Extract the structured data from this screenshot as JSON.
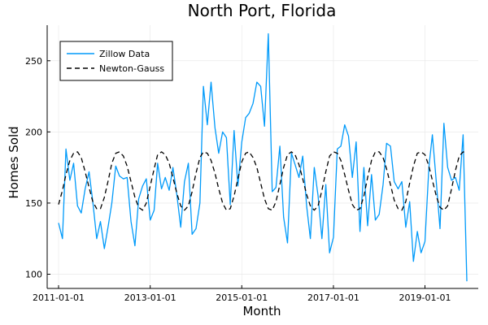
{
  "chart_data": {
    "type": "line",
    "title": "North Port, Florida",
    "xlabel": "Month",
    "ylabel": "Homes Sold",
    "xlim": [
      "2011-01-01",
      "2019-12-01"
    ],
    "ylim": [
      90,
      275
    ],
    "x_ticks": [
      "2011-01-01",
      "2013-01-01",
      "2015-01-01",
      "2017-01-01",
      "2019-01-01"
    ],
    "y_ticks": [
      100,
      150,
      200,
      250
    ],
    "grid": true,
    "legend_position": "top-left",
    "x": [
      "2011-01-01",
      "2011-02-01",
      "2011-03-01",
      "2011-04-01",
      "2011-05-01",
      "2011-06-01",
      "2011-07-01",
      "2011-08-01",
      "2011-09-01",
      "2011-10-01",
      "2011-11-01",
      "2011-12-01",
      "2012-01-01",
      "2012-02-01",
      "2012-03-01",
      "2012-04-01",
      "2012-05-01",
      "2012-06-01",
      "2012-07-01",
      "2012-08-01",
      "2012-09-01",
      "2012-10-01",
      "2012-11-01",
      "2012-12-01",
      "2013-01-01",
      "2013-02-01",
      "2013-03-01",
      "2013-04-01",
      "2013-05-01",
      "2013-06-01",
      "2013-07-01",
      "2013-08-01",
      "2013-09-01",
      "2013-10-01",
      "2013-11-01",
      "2013-12-01",
      "2014-01-01",
      "2014-02-01",
      "2014-03-01",
      "2014-04-01",
      "2014-05-01",
      "2014-06-01",
      "2014-07-01",
      "2014-08-01",
      "2014-09-01",
      "2014-10-01",
      "2014-11-01",
      "2014-12-01",
      "2015-01-01",
      "2015-02-01",
      "2015-03-01",
      "2015-04-01",
      "2015-05-01",
      "2015-06-01",
      "2015-07-01",
      "2015-08-01",
      "2015-09-01",
      "2015-10-01",
      "2015-11-01",
      "2015-12-01",
      "2016-01-01",
      "2016-02-01",
      "2016-03-01",
      "2016-04-01",
      "2016-05-01",
      "2016-06-01",
      "2016-07-01",
      "2016-08-01",
      "2016-09-01",
      "2016-10-01",
      "2016-11-01",
      "2016-12-01",
      "2017-01-01",
      "2017-02-01",
      "2017-03-01",
      "2017-04-01",
      "2017-05-01",
      "2017-06-01",
      "2017-07-01",
      "2017-08-01",
      "2017-09-01",
      "2017-10-01",
      "2017-11-01",
      "2017-12-01",
      "2018-01-01",
      "2018-02-01",
      "2018-03-01",
      "2018-04-01",
      "2018-05-01",
      "2018-06-01",
      "2018-07-01",
      "2018-08-01",
      "2018-09-01",
      "2018-10-01",
      "2018-11-01",
      "2018-12-01",
      "2019-01-01",
      "2019-02-01",
      "2019-03-01",
      "2019-04-01",
      "2019-05-01",
      "2019-06-01",
      "2019-07-01",
      "2019-08-01",
      "2019-09-01",
      "2019-10-01",
      "2019-11-01",
      "2019-12-01"
    ],
    "series": [
      {
        "name": "Zillow Data",
        "color": "#009AFA",
        "style": "solid",
        "values": [
          136,
          125,
          188,
          166,
          178,
          148,
          143,
          160,
          172,
          151,
          125,
          137,
          118,
          134,
          150,
          176,
          169,
          167,
          168,
          137,
          120,
          153,
          162,
          167,
          138,
          145,
          178,
          160,
          168,
          159,
          175,
          156,
          133,
          165,
          178,
          128,
          132,
          150,
          232,
          205,
          235,
          203,
          185,
          200,
          196,
          149,
          201,
          162,
          193,
          210,
          213,
          220,
          235,
          232,
          204,
          269,
          158,
          161,
          190,
          140,
          122,
          185,
          177,
          168,
          183,
          148,
          125,
          175,
          155,
          125,
          163,
          115,
          126,
          188,
          190,
          205,
          197,
          168,
          193,
          130,
          175,
          134,
          170,
          138,
          142,
          163,
          192,
          190,
          165,
          160,
          165,
          133,
          151,
          109,
          130,
          115,
          123,
          175,
          198,
          165,
          132,
          206,
          175,
          166,
          168,
          159,
          198,
          95
        ]
      },
      {
        "name": "Newton-Gauss",
        "color": "#000000",
        "style": "dashed",
        "values": [
          149,
          159,
          170,
          180,
          185,
          186,
          182,
          172,
          161,
          151,
          146,
          146,
          154,
          166,
          178,
          185,
          186,
          183,
          176,
          165,
          154,
          147,
          145,
          150,
          162,
          174,
          184,
          186,
          184,
          178,
          168,
          157,
          148,
          145,
          148,
          158,
          171,
          182,
          186,
          185,
          180,
          171,
          160,
          150,
          145,
          146,
          155,
          167,
          179,
          185,
          186,
          182,
          175,
          164,
          153,
          146,
          145,
          151,
          163,
          175,
          184,
          186,
          184,
          177,
          167,
          156,
          148,
          145,
          148,
          159,
          172,
          183,
          186,
          185,
          180,
          170,
          159,
          149,
          145,
          146,
          155,
          168,
          180,
          186,
          186,
          182,
          174,
          163,
          152,
          146,
          145,
          151,
          164,
          176,
          185,
          186,
          184,
          176,
          166,
          155,
          147,
          145,
          148,
          160,
          173,
          183,
          186,
          185
        ]
      }
    ]
  }
}
